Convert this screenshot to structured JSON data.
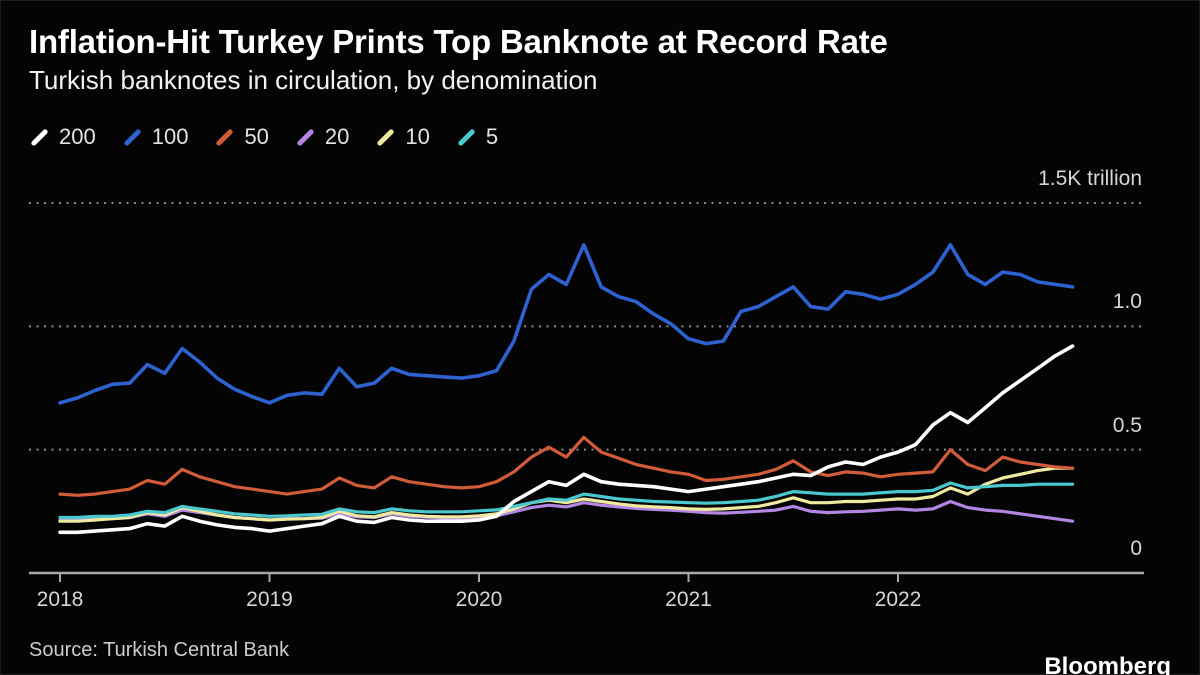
{
  "header": {
    "title": "Inflation-Hit Turkey Prints Top Banknote at Record Rate",
    "subtitle": "Turkish banknotes in circulation, by denomination"
  },
  "legend": {
    "items": [
      {
        "label": "200",
        "color": "#ffffff"
      },
      {
        "label": "100",
        "color": "#2d62d0"
      },
      {
        "label": "50",
        "color": "#d05c3a"
      },
      {
        "label": "20",
        "color": "#b286e2"
      },
      {
        "label": "10",
        "color": "#f0e9a0"
      },
      {
        "label": "5",
        "color": "#4ac8cf"
      }
    ]
  },
  "footer": {
    "source": "Source: Turkish Central Bank",
    "brand": "Bloomberg"
  },
  "chart_data": {
    "type": "line",
    "title": "Inflation-Hit Turkey Prints Top Banknote at Record Rate",
    "subtitle": "Turkish banknotes in circulation, by denomination",
    "x_range": [
      "2018-01",
      "2022-11"
    ],
    "x_tick_labels": [
      "2018",
      "2019",
      "2020",
      "2021",
      "2022"
    ],
    "ylim": [
      0,
      1.5
    ],
    "y_top_label": "1.5K trillion",
    "grid": "dotted-horizontal",
    "legend_position": "top",
    "y_gridlines": [
      {
        "value": 1.5,
        "label": "1.5K trillion"
      },
      {
        "value": 1.0,
        "label": "1.0"
      },
      {
        "value": 0.5,
        "label": "0.5"
      },
      {
        "value": 0.0,
        "label": "0"
      }
    ],
    "series": [
      {
        "name": "200",
        "color": "#ffffff",
        "values": [
          0.165,
          0.165,
          0.17,
          0.175,
          0.18,
          0.2,
          0.19,
          0.23,
          0.21,
          0.195,
          0.185,
          0.18,
          0.17,
          0.18,
          0.19,
          0.2,
          0.23,
          0.21,
          0.205,
          0.225,
          0.215,
          0.21,
          0.21,
          0.21,
          0.215,
          0.23,
          0.29,
          0.33,
          0.37,
          0.355,
          0.4,
          0.37,
          0.36,
          0.355,
          0.35,
          0.34,
          0.33,
          0.34,
          0.35,
          0.36,
          0.37,
          0.385,
          0.4,
          0.395,
          0.43,
          0.45,
          0.44,
          0.47,
          0.49,
          0.52,
          0.6,
          0.65,
          0.61,
          0.67,
          0.73,
          0.78,
          0.83,
          0.88,
          0.92
        ]
      },
      {
        "name": "100",
        "color": "#2d62d0",
        "values": [
          0.69,
          0.71,
          0.74,
          0.765,
          0.77,
          0.845,
          0.81,
          0.91,
          0.855,
          0.79,
          0.745,
          0.715,
          0.69,
          0.72,
          0.73,
          0.725,
          0.83,
          0.755,
          0.77,
          0.83,
          0.805,
          0.8,
          0.795,
          0.79,
          0.8,
          0.82,
          0.94,
          1.15,
          1.21,
          1.17,
          1.33,
          1.16,
          1.12,
          1.1,
          1.05,
          1.01,
          0.95,
          0.93,
          0.94,
          1.06,
          1.08,
          1.12,
          1.16,
          1.08,
          1.07,
          1.14,
          1.13,
          1.11,
          1.13,
          1.17,
          1.22,
          1.33,
          1.21,
          1.17,
          1.22,
          1.21,
          1.18,
          1.17,
          1.16
        ]
      },
      {
        "name": "50",
        "color": "#d05c3a",
        "values": [
          0.32,
          0.315,
          0.32,
          0.33,
          0.34,
          0.375,
          0.36,
          0.42,
          0.39,
          0.37,
          0.35,
          0.34,
          0.33,
          0.32,
          0.33,
          0.34,
          0.385,
          0.355,
          0.345,
          0.39,
          0.37,
          0.36,
          0.35,
          0.345,
          0.35,
          0.37,
          0.41,
          0.47,
          0.51,
          0.47,
          0.55,
          0.49,
          0.465,
          0.44,
          0.425,
          0.41,
          0.4,
          0.375,
          0.38,
          0.39,
          0.4,
          0.42,
          0.455,
          0.41,
          0.395,
          0.41,
          0.405,
          0.39,
          0.4,
          0.405,
          0.41,
          0.5,
          0.44,
          0.415,
          0.47,
          0.45,
          0.44,
          0.43,
          0.425
        ]
      },
      {
        "name": "20",
        "color": "#b286e2",
        "values": [
          0.215,
          0.215,
          0.22,
          0.22,
          0.225,
          0.24,
          0.23,
          0.255,
          0.245,
          0.235,
          0.225,
          0.22,
          0.215,
          0.22,
          0.22,
          0.222,
          0.24,
          0.228,
          0.225,
          0.24,
          0.23,
          0.226,
          0.223,
          0.223,
          0.227,
          0.232,
          0.248,
          0.265,
          0.275,
          0.268,
          0.285,
          0.275,
          0.268,
          0.262,
          0.258,
          0.255,
          0.25,
          0.245,
          0.243,
          0.246,
          0.25,
          0.255,
          0.27,
          0.25,
          0.245,
          0.248,
          0.25,
          0.255,
          0.26,
          0.255,
          0.26,
          0.29,
          0.265,
          0.255,
          0.25,
          0.24,
          0.23,
          0.22,
          0.21
        ]
      },
      {
        "name": "10",
        "color": "#f0e9a0",
        "values": [
          0.21,
          0.21,
          0.215,
          0.22,
          0.225,
          0.245,
          0.235,
          0.265,
          0.25,
          0.235,
          0.225,
          0.22,
          0.215,
          0.218,
          0.22,
          0.225,
          0.25,
          0.232,
          0.228,
          0.245,
          0.235,
          0.23,
          0.228,
          0.228,
          0.232,
          0.24,
          0.26,
          0.285,
          0.295,
          0.285,
          0.3,
          0.29,
          0.28,
          0.272,
          0.268,
          0.265,
          0.26,
          0.258,
          0.26,
          0.265,
          0.27,
          0.285,
          0.305,
          0.285,
          0.285,
          0.29,
          0.29,
          0.295,
          0.3,
          0.3,
          0.31,
          0.345,
          0.32,
          0.36,
          0.385,
          0.4,
          0.415,
          0.425,
          0.425
        ]
      },
      {
        "name": "5",
        "color": "#4ac8cf",
        "values": [
          0.225,
          0.225,
          0.23,
          0.23,
          0.235,
          0.25,
          0.245,
          0.27,
          0.26,
          0.25,
          0.24,
          0.235,
          0.23,
          0.232,
          0.235,
          0.238,
          0.26,
          0.248,
          0.245,
          0.26,
          0.252,
          0.248,
          0.248,
          0.248,
          0.252,
          0.256,
          0.27,
          0.285,
          0.3,
          0.295,
          0.32,
          0.31,
          0.3,
          0.295,
          0.29,
          0.288,
          0.285,
          0.283,
          0.285,
          0.29,
          0.295,
          0.31,
          0.33,
          0.325,
          0.32,
          0.32,
          0.32,
          0.325,
          0.33,
          0.33,
          0.335,
          0.365,
          0.345,
          0.35,
          0.355,
          0.355,
          0.36,
          0.36,
          0.36
        ]
      }
    ]
  }
}
